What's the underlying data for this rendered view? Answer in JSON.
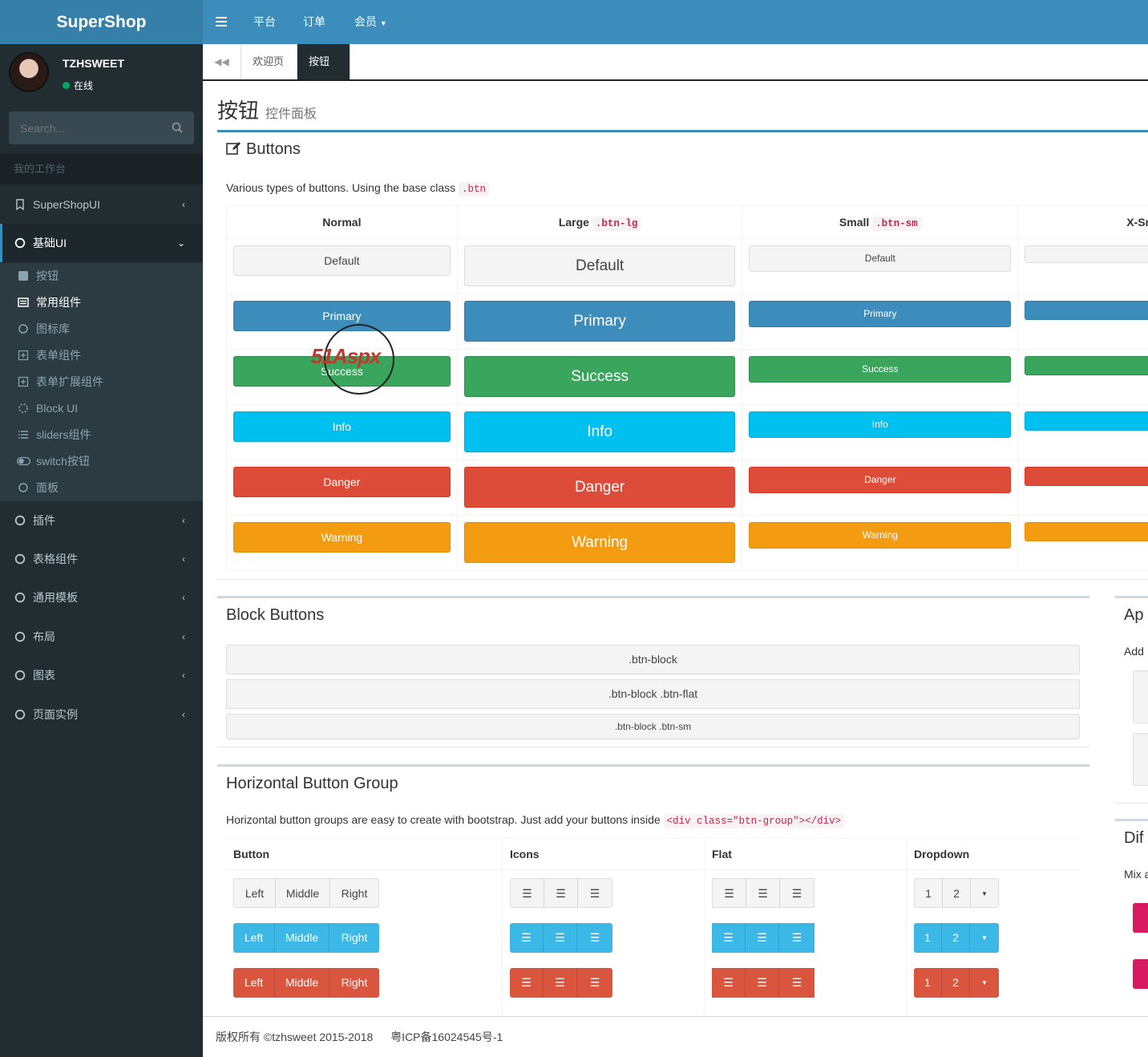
{
  "app": {
    "logo": "SuperShop"
  },
  "user": {
    "name": "TZHSWEET",
    "status": "在线"
  },
  "search": {
    "placeholder": "Search..."
  },
  "sidebar": {
    "header": "我的工作台",
    "items": [
      {
        "label": "SuperShopUI"
      },
      {
        "label": "基础UI"
      },
      {
        "label": "插件"
      },
      {
        "label": "表格组件"
      },
      {
        "label": "通用模板"
      },
      {
        "label": "布局"
      },
      {
        "label": "图表"
      },
      {
        "label": "页面实例"
      }
    ],
    "subitems": [
      {
        "label": "按钮"
      },
      {
        "label": "常用组件"
      },
      {
        "label": "图标库"
      },
      {
        "label": "表单组件"
      },
      {
        "label": "表单扩展组件"
      },
      {
        "label": "Block UI"
      },
      {
        "label": "sliders组件"
      },
      {
        "label": "switch按钮"
      },
      {
        "label": "面板"
      }
    ]
  },
  "topnav": {
    "items": [
      "平台",
      "订单",
      "会员"
    ]
  },
  "tabs": [
    {
      "label": "欢迎页"
    },
    {
      "label": "按钮"
    }
  ],
  "page": {
    "title": "按钮",
    "subtitle": "控件面板"
  },
  "buttons_box": {
    "title": "Buttons",
    "desc": "Various types of buttons. Using the base class",
    "desc_code": ".btn",
    "columns": [
      {
        "label": "Normal",
        "code": ""
      },
      {
        "label": "Large",
        "code": ".btn-lg"
      },
      {
        "label": "Small",
        "code": ".btn-sm"
      },
      {
        "label": "X-Sm",
        "code": ""
      }
    ],
    "rows": [
      "Default",
      "Primary",
      "Success",
      "Info",
      "Danger",
      "Warning"
    ]
  },
  "block_box": {
    "title": "Block Buttons",
    "buttons": [
      ".btn-block",
      ".btn-block .btn-flat",
      ".btn-block .btn-sm"
    ]
  },
  "hgroup_box": {
    "title": "Horizontal Button Group",
    "desc": "Horizontal button groups are easy to create with bootstrap. Just add your buttons inside",
    "desc_code": "<div class=\"btn-group\"></div>",
    "columns": [
      "Button",
      "Icons",
      "Flat",
      "Dropdown"
    ],
    "labels": [
      "Left",
      "Middle",
      "Right"
    ],
    "dropdown": [
      "1",
      "2"
    ]
  },
  "side_boxes": {
    "app_title": "Ap",
    "app_desc": "Add",
    "diff_title": "Dif",
    "diff_desc": "Mix a"
  },
  "watermark": {
    "text": "51Aspx"
  },
  "footer": {
    "copyright": "版权所有 ©tzhsweet 2015-2018",
    "icp": "粤ICP备16024545号-1"
  },
  "colors": {
    "primary": "#3c8dbc",
    "success": "#00a65a",
    "info": "#00c0ef",
    "danger": "#dd4b39",
    "warning": "#f39c12",
    "sidebar": "#222d32"
  }
}
